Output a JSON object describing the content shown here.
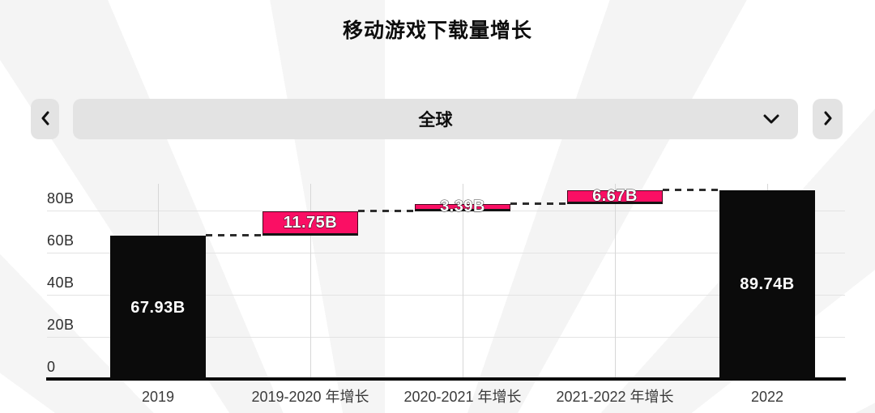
{
  "header": {
    "title": "移动游戏下载量增长"
  },
  "selector": {
    "value": "全球",
    "prev_icon": "chevron-left",
    "next_icon": "chevron-right",
    "expand_icon": "chevron-down"
  },
  "chart_data": {
    "type": "bar",
    "subtype": "waterfall",
    "title": "移动游戏下载量增长",
    "categories": [
      "2019",
      "2019-2020 年增长",
      "2020-2021 年增长",
      "2021-2022 年增长",
      "2022"
    ],
    "series": [
      {
        "category": "2019",
        "kind": "total",
        "value": 67.93,
        "display": "67.93B",
        "start": 0,
        "end": 67.93
      },
      {
        "category": "2019-2020 年增长",
        "kind": "growth",
        "value": 11.75,
        "display": "11.75B",
        "start": 67.93,
        "end": 79.68
      },
      {
        "category": "2020-2021 年增长",
        "kind": "growth",
        "value": 3.39,
        "display": "3.39B",
        "start": 79.68,
        "end": 83.07
      },
      {
        "category": "2021-2022 年增长",
        "kind": "growth",
        "value": 6.67,
        "display": "6.67B",
        "start": 83.07,
        "end": 89.74
      },
      {
        "category": "2022",
        "kind": "total",
        "value": 89.74,
        "display": "89.74B",
        "start": 0,
        "end": 89.74
      }
    ],
    "y_ticks": [
      {
        "value": 0,
        "label": "0"
      },
      {
        "value": 20,
        "label": "20B"
      },
      {
        "value": 40,
        "label": "40B"
      },
      {
        "value": 60,
        "label": "60B"
      },
      {
        "value": 80,
        "label": "80B"
      }
    ],
    "ylim": [
      0,
      93
    ],
    "grid": true,
    "legend": false,
    "connector_style": "dashed",
    "colors": {
      "total_bar": "#0b0b0b",
      "growth_bar": "#fa0f64",
      "bar_label": "#ffffff",
      "connector": "#2d2d2d"
    }
  }
}
